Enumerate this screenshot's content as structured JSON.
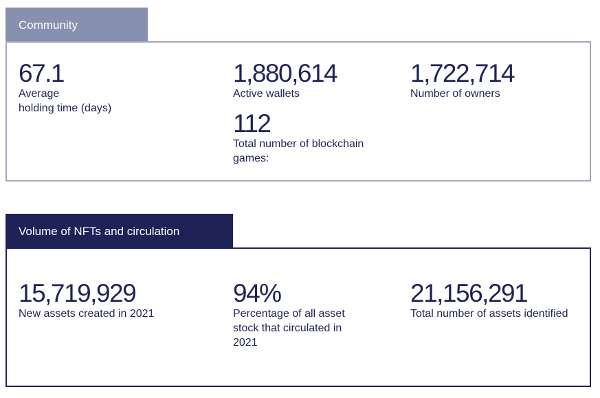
{
  "community": {
    "title": "Community",
    "stats": [
      {
        "value": "67.1",
        "label": "Average\nholding time (days)"
      },
      {
        "value": "1,880,614",
        "label": "Active wallets"
      },
      {
        "value": "1,722,714",
        "label": "Number of owners"
      },
      {
        "value": "112",
        "label": "Total number of blockchain\ngames:"
      }
    ]
  },
  "volume": {
    "title": "Volume of NFTs and circulation",
    "stats": [
      {
        "value": "15,719,929",
        "label": "New assets created in 2021"
      },
      {
        "value": "94%",
        "label": "Percentage of all asset\nstock that circulated in\n2021"
      },
      {
        "value": "21,156,291",
        "label": "Total number of assets identified"
      }
    ]
  },
  "colors": {
    "community_tab": "#8890b0",
    "community_border": "#a2a8bf",
    "volume_tab": "#1f2257",
    "text": "#1f2257"
  }
}
